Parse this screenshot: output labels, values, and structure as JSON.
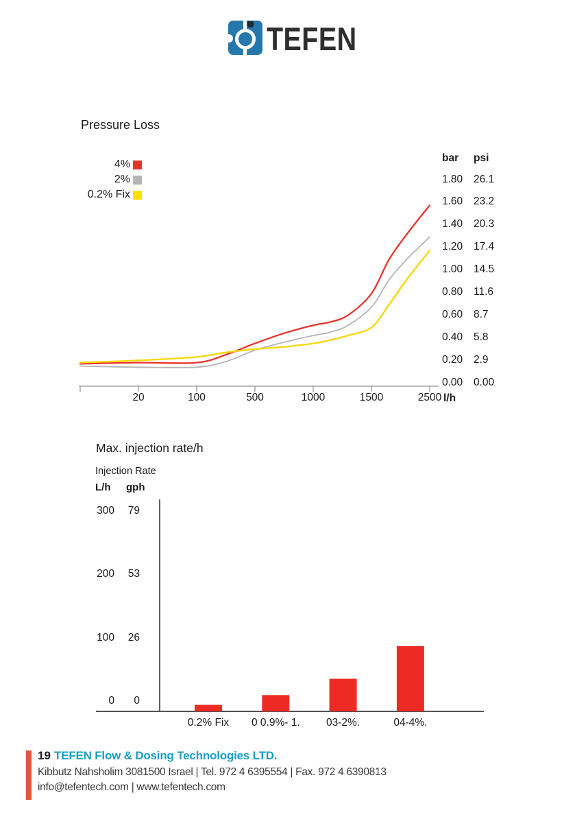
{
  "logo": {
    "text": "TEFEN",
    "blue": "#2478ab",
    "dark_tab": "#1d2a35",
    "text_color": "#2d2e30"
  },
  "pressure_chart": {
    "title": "Pressure Loss",
    "x_unit": "l/h",
    "x_ticks": [
      "20",
      "100",
      "500",
      "1000",
      "1500",
      "2500"
    ],
    "legend": [
      {
        "label": "4%",
        "color": "#e6332c"
      },
      {
        "label": "2%",
        "color": "#b5b5b7"
      },
      {
        "label": "0.2% Fix",
        "color": "#ffdf00"
      }
    ],
    "right_axis": {
      "col1": "bar",
      "col2": "psi",
      "rows": [
        [
          "1.80",
          "26.1"
        ],
        [
          "1.60",
          "23.2"
        ],
        [
          "1.40",
          "20.3"
        ],
        [
          "1.20",
          "17.4"
        ],
        [
          "1.00",
          "14.5"
        ],
        [
          "0.80",
          "11.6"
        ],
        [
          "0.60",
          "8.7"
        ],
        [
          "0.40",
          "5.8"
        ],
        [
          "0.20",
          "2.9"
        ],
        [
          "0.00",
          "0.00"
        ]
      ]
    }
  },
  "injection_chart": {
    "title": "Max. injection rate/h",
    "axis_label": "Injection Rate",
    "col1": "L/h",
    "col2": "gph",
    "y_rows": [
      [
        "300",
        "79"
      ],
      [
        "200",
        "53"
      ],
      [
        "100",
        "26"
      ],
      [
        "0",
        "0"
      ]
    ],
    "categories": [
      "0.2% Fix",
      "0 0.9%- 1.",
      "03-2%.",
      "04-4%."
    ]
  },
  "chart_data": [
    {
      "type": "line",
      "title": "Pressure Loss",
      "xlabel": "l/h",
      "ylabel": "bar / psi",
      "x_ticks": [
        20,
        100,
        500,
        1000,
        1500,
        2500
      ],
      "x_scale_note": "ticks equally spaced, axis origin 0 l/h",
      "y_ticks_bar": [
        0.0,
        0.2,
        0.4,
        0.6,
        0.8,
        1.0,
        1.2,
        1.4,
        1.6,
        1.8
      ],
      "y_ticks_psi": [
        0.0,
        2.9,
        5.8,
        8.7,
        11.6,
        14.5,
        17.4,
        20.3,
        23.2,
        26.1
      ],
      "ylim_bar": [
        0,
        1.8
      ],
      "grid": false,
      "legend_position": "top-left",
      "series": [
        {
          "name": "4%",
          "color": "#e6332c",
          "width": 2.3,
          "points": [
            [
              0,
              0.18
            ],
            [
              20,
              0.19
            ],
            [
              100,
              0.19
            ],
            [
              300,
              0.26
            ],
            [
              500,
              0.36
            ],
            [
              750,
              0.45
            ],
            [
              1000,
              0.52
            ],
            [
              1150,
              0.55
            ],
            [
              1300,
              0.61
            ],
            [
              1500,
              0.8
            ],
            [
              1800,
              1.1
            ],
            [
              2100,
              1.32
            ],
            [
              2500,
              1.58
            ]
          ]
        },
        {
          "name": "2%",
          "color": "#b5b5b7",
          "width": 1.8,
          "points": [
            [
              0,
              0.16
            ],
            [
              20,
              0.15
            ],
            [
              100,
              0.15
            ],
            [
              300,
              0.2
            ],
            [
              500,
              0.3
            ],
            [
              750,
              0.37
            ],
            [
              1000,
              0.43
            ],
            [
              1150,
              0.46
            ],
            [
              1300,
              0.52
            ],
            [
              1500,
              0.68
            ],
            [
              1800,
              0.92
            ],
            [
              2100,
              1.1
            ],
            [
              2500,
              1.3
            ]
          ]
        },
        {
          "name": "0.2% Fix",
          "color": "#f9d600",
          "width": 2.3,
          "points": [
            [
              0,
              0.19
            ],
            [
              20,
              0.21
            ],
            [
              100,
              0.24
            ],
            [
              300,
              0.28
            ],
            [
              500,
              0.31
            ],
            [
              750,
              0.33
            ],
            [
              1000,
              0.36
            ],
            [
              1150,
              0.39
            ],
            [
              1300,
              0.43
            ],
            [
              1500,
              0.5
            ],
            [
              1800,
              0.7
            ],
            [
              2100,
              0.92
            ],
            [
              2500,
              1.18
            ]
          ]
        }
      ]
    },
    {
      "type": "bar",
      "title": "Max. injection rate/h",
      "ylabel": "Injection Rate",
      "y_units": [
        "L/h",
        "gph"
      ],
      "y_ticks_lh": [
        0,
        100,
        200,
        300
      ],
      "y_ticks_gph": [
        0,
        26,
        53,
        79
      ],
      "ylim_lh": [
        0,
        300
      ],
      "categories": [
        "0.2% Fix",
        "0 0.9%- 1.",
        "03-2%.",
        "04-4%."
      ],
      "values_lh": [
        10,
        25,
        50,
        100
      ],
      "bar_color": "#ed2b24"
    }
  ],
  "footer": {
    "page_number": "19",
    "company": "TEFEN Flow & Dosing Technologies LTD.",
    "address_line": "Kibbutz Nahsholim 3081500 Israel | Tel. 972 4 6395554 | Fax. 972 4 6390813",
    "contact_line": "info@tefentech.com | www.tefentech.com",
    "accent": "#1a9ec7",
    "bar_color": "#e0573e"
  }
}
